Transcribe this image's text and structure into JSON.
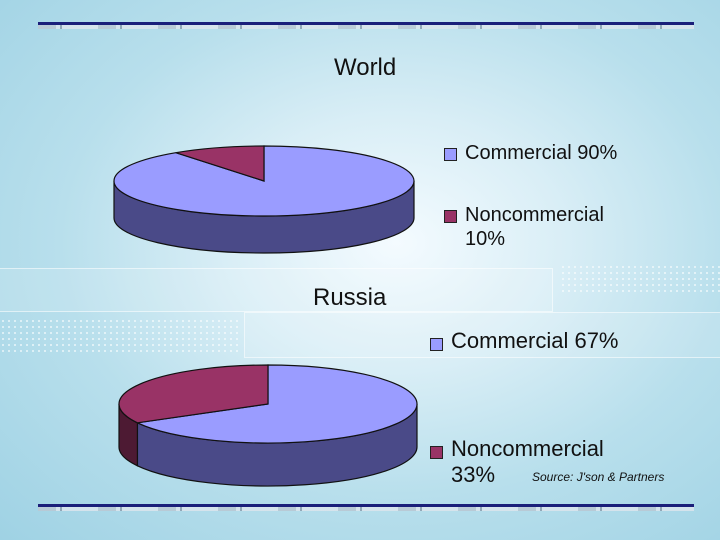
{
  "colors": {
    "commercial_top": "#9a9cff",
    "commercial_side": "#4a4a88",
    "noncommercial_top": "#993366",
    "noncommercial_side": "#4d1a33",
    "rule_dark": "#1a1f7a"
  },
  "source_text": "Source: J'son & Partners",
  "chart_data": [
    {
      "type": "pie",
      "title": "World",
      "slices": [
        {
          "label": "Commercial 90%",
          "value": 90
        },
        {
          "label": "Noncommercial 10%",
          "value": 10
        }
      ]
    },
    {
      "type": "pie",
      "title": "Russia",
      "slices": [
        {
          "label": "Commercial 67%",
          "value": 67
        },
        {
          "label": "Noncommercial 33%",
          "value": 33
        }
      ]
    }
  ]
}
